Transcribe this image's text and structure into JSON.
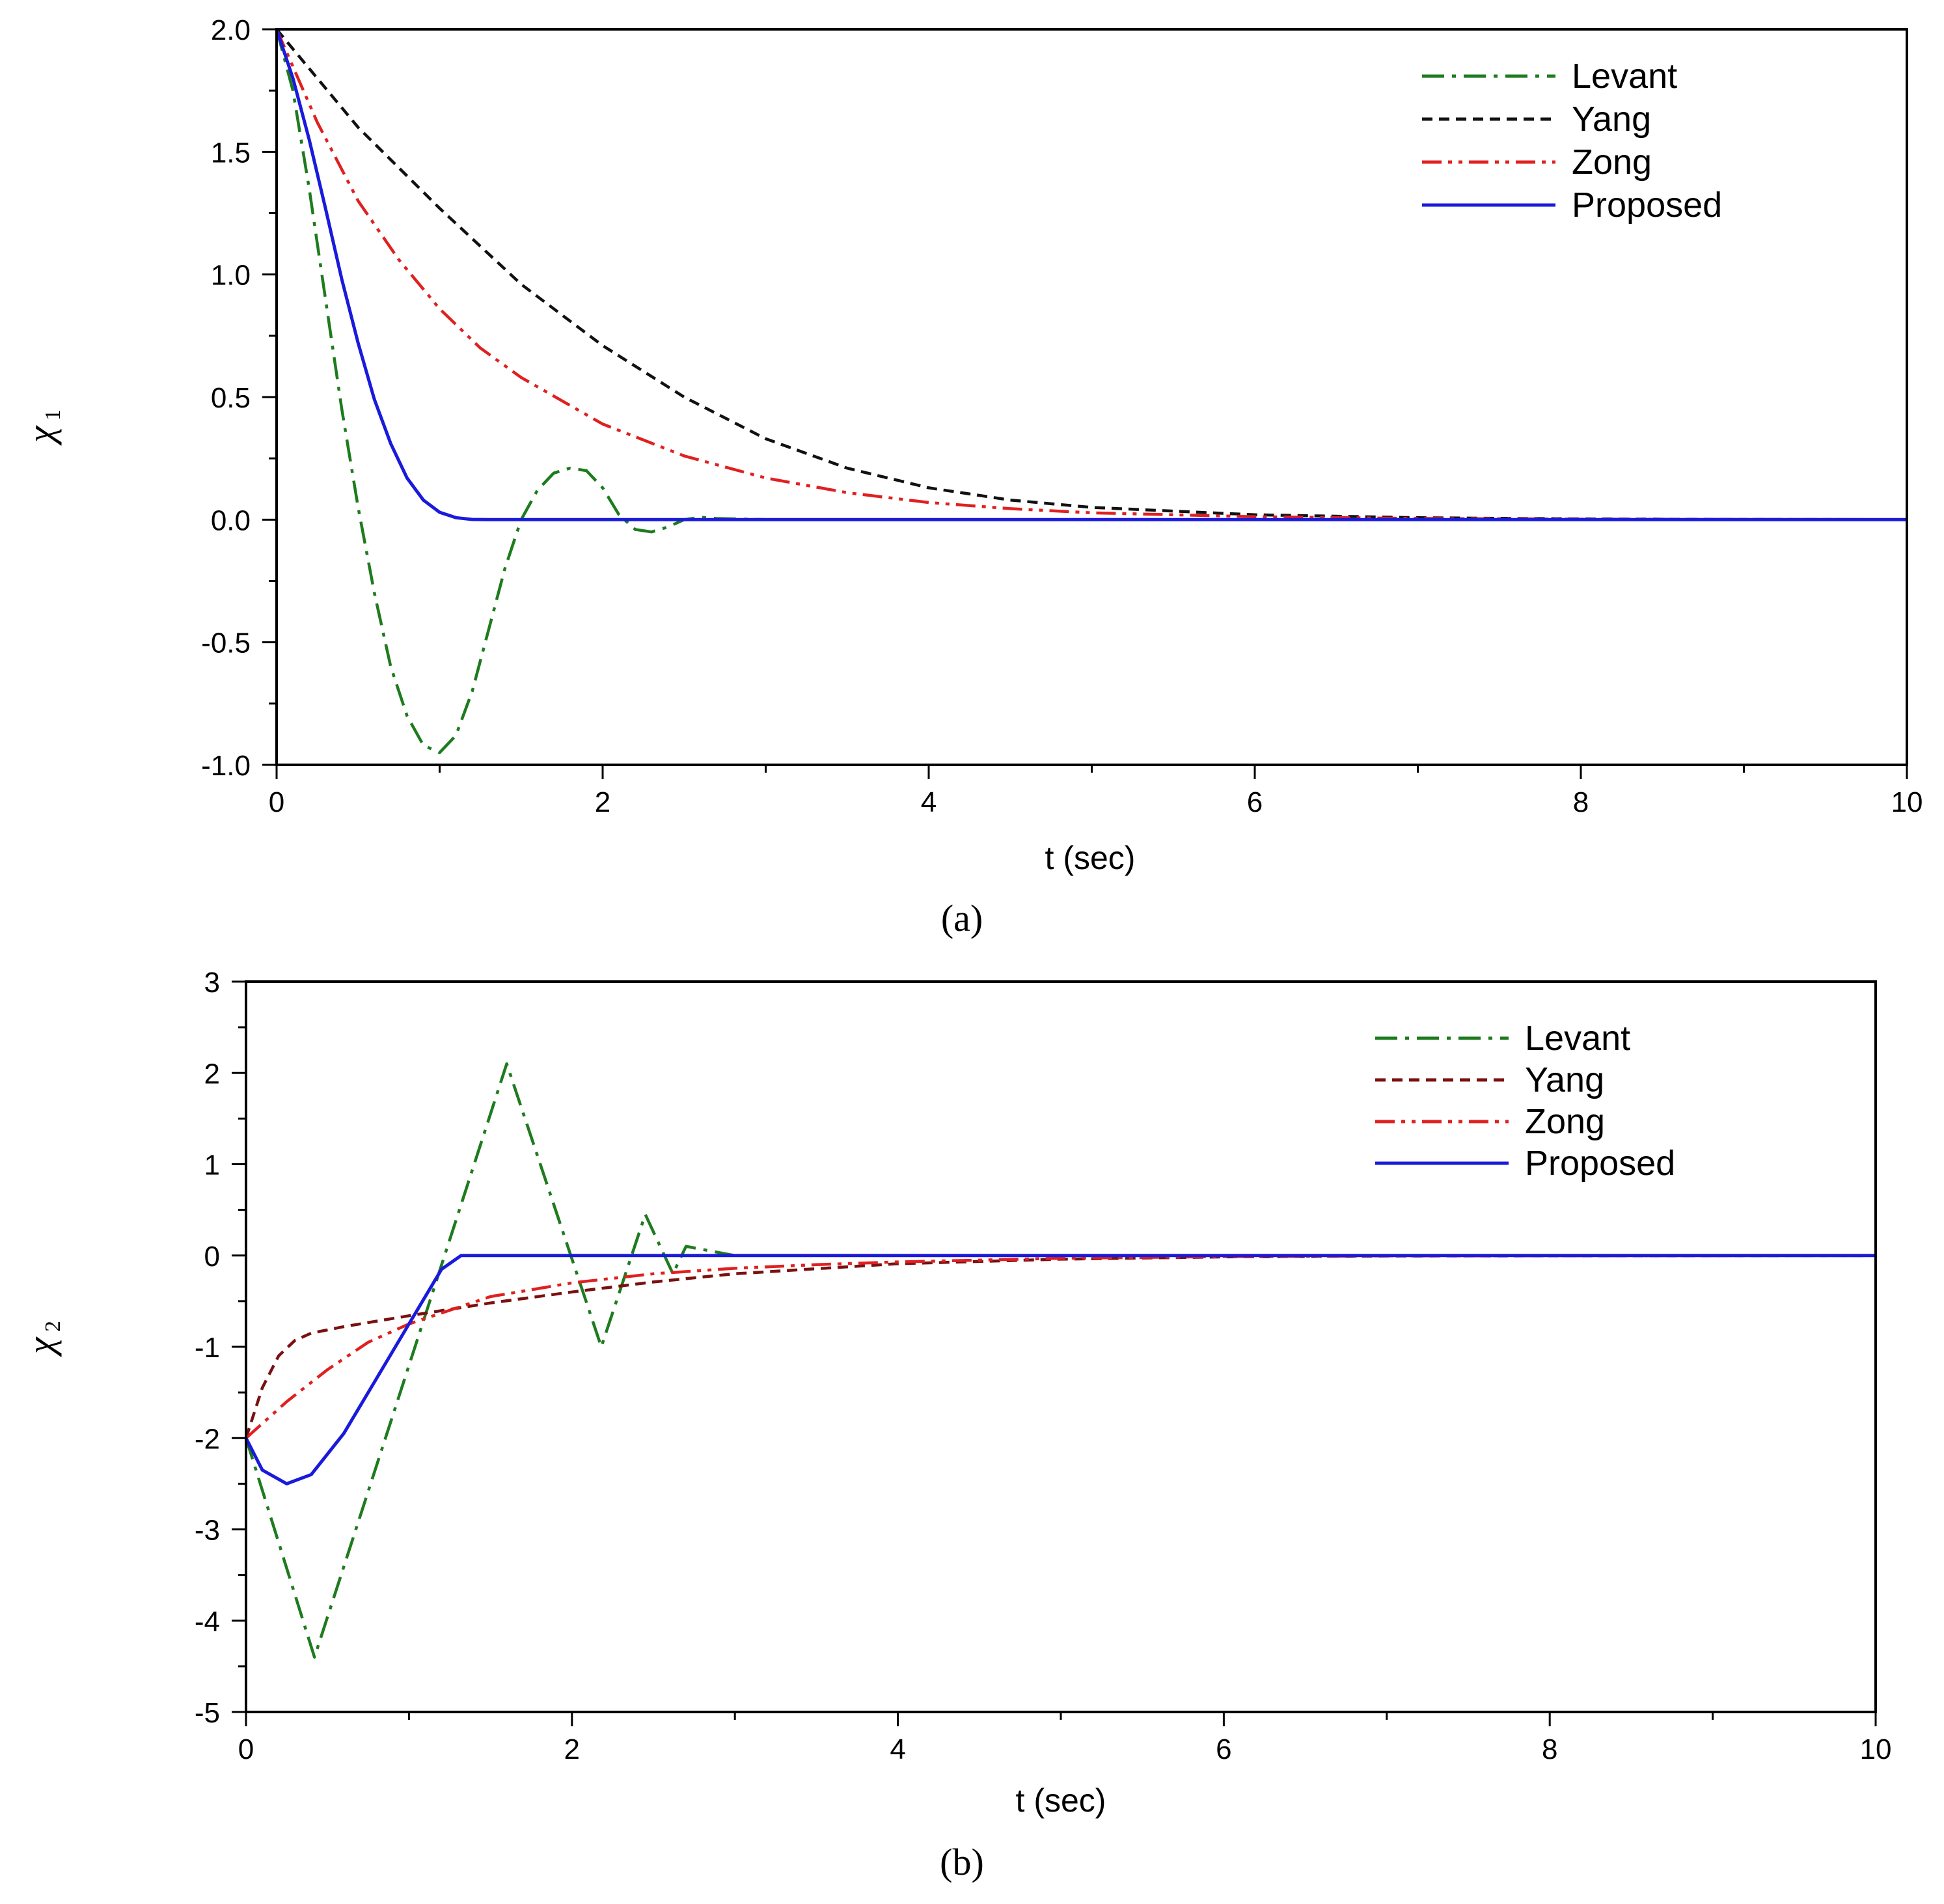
{
  "chart_data": [
    {
      "type": "line",
      "panel_label": "a",
      "caption": "(a)",
      "xlabel": "t (sec)",
      "ylabel": "χ",
      "ylabel_sub": "1",
      "xlim": [
        0,
        10
      ],
      "ylim": [
        -1.0,
        2.0
      ],
      "xticks": [
        0,
        2,
        4,
        6,
        8,
        10
      ],
      "xtick_labels": [
        "0",
        "2",
        "4",
        "6",
        "8",
        "10"
      ],
      "yticks": [
        -1.0,
        -0.5,
        0.0,
        0.5,
        1.0,
        1.5,
        2.0
      ],
      "ytick_labels": [
        "-1.0",
        "-0.5",
        "0.0",
        "0.5",
        "1.0",
        "1.5",
        "2.0"
      ],
      "legend_position": "top-right",
      "series": [
        {
          "name": "Levant",
          "color": "#1e7b1e",
          "dash": "dashdot",
          "x": [
            0,
            0.1,
            0.2,
            0.3,
            0.4,
            0.5,
            0.6,
            0.7,
            0.8,
            0.9,
            1.0,
            1.1,
            1.2,
            1.3,
            1.4,
            1.5,
            1.6,
            1.7,
            1.8,
            1.9,
            2.0,
            2.1,
            2.2,
            2.3,
            2.4,
            2.5,
            2.6,
            2.7,
            3.0,
            10
          ],
          "values": [
            2.0,
            1.75,
            1.35,
            0.9,
            0.45,
            0.05,
            -0.3,
            -0.6,
            -0.8,
            -0.92,
            -0.95,
            -0.88,
            -0.7,
            -0.45,
            -0.2,
            0.0,
            0.12,
            0.19,
            0.21,
            0.2,
            0.13,
            0.02,
            -0.04,
            -0.05,
            -0.03,
            0.0,
            0.01,
            0.005,
            0.0,
            0.0
          ]
        },
        {
          "name": "Yang",
          "color": "#111111",
          "dash": "dashed",
          "x": [
            0,
            0.5,
            1.0,
            1.5,
            2.0,
            2.5,
            3.0,
            3.5,
            4.0,
            4.5,
            5.0,
            6.0,
            7.0,
            8.0,
            9.0,
            10.0
          ],
          "values": [
            2.0,
            1.6,
            1.27,
            0.96,
            0.71,
            0.5,
            0.33,
            0.21,
            0.13,
            0.08,
            0.05,
            0.02,
            0.008,
            0.003,
            0.001,
            0.0
          ]
        },
        {
          "name": "Zong",
          "color": "#e02020",
          "dash": "dashdotdot",
          "x": [
            0,
            0.25,
            0.5,
            0.75,
            1.0,
            1.25,
            1.5,
            2.0,
            2.5,
            3.0,
            3.5,
            4.0,
            4.5,
            5.0,
            6.0,
            7.0,
            8.0,
            10.0
          ],
          "values": [
            2.0,
            1.62,
            1.3,
            1.06,
            0.86,
            0.7,
            0.58,
            0.39,
            0.26,
            0.17,
            0.11,
            0.07,
            0.045,
            0.028,
            0.012,
            0.005,
            0.002,
            0.0
          ]
        },
        {
          "name": "Proposed",
          "color": "#1a1adc",
          "dash": "solid",
          "x": [
            0,
            0.1,
            0.2,
            0.3,
            0.4,
            0.5,
            0.6,
            0.7,
            0.8,
            0.9,
            1.0,
            1.1,
            1.2,
            1.3,
            1.5,
            10
          ],
          "values": [
            2.0,
            1.8,
            1.55,
            1.27,
            0.98,
            0.72,
            0.49,
            0.31,
            0.17,
            0.08,
            0.03,
            0.008,
            0.001,
            0.0,
            0.0,
            0.0
          ]
        }
      ]
    },
    {
      "type": "line",
      "panel_label": "b",
      "caption": "(b)",
      "xlabel": "t (sec)",
      "ylabel": "χ",
      "ylabel_sub": "2",
      "xlim": [
        0,
        10
      ],
      "ylim": [
        -5,
        3
      ],
      "xticks": [
        0,
        2,
        4,
        6,
        8,
        10
      ],
      "xtick_labels": [
        "0",
        "2",
        "4",
        "6",
        "8",
        "10"
      ],
      "yticks": [
        -5,
        -4,
        -3,
        -2,
        -1,
        0,
        1,
        2,
        3
      ],
      "ytick_labels": [
        "-5",
        "-4",
        "-3",
        "-2",
        "-1",
        "0",
        "1",
        "2",
        "3"
      ],
      "legend_position": "top-right",
      "series": [
        {
          "name": "Levant",
          "color": "#1e7b1e",
          "dash": "dashdot",
          "x": [
            0,
            0.42,
            1.6,
            2.18,
            2.45,
            2.62,
            2.7,
            3.0,
            10
          ],
          "values": [
            -2.0,
            -4.4,
            2.1,
            -1.0,
            0.45,
            -0.2,
            0.1,
            0.0,
            0.0
          ]
        },
        {
          "name": "Yang",
          "color": "#7a1010",
          "dash": "dashed",
          "x": [
            0,
            0.1,
            0.2,
            0.3,
            0.4,
            0.6,
            1.0,
            1.5,
            2.0,
            2.5,
            3.0,
            4.0,
            5.0,
            6.0,
            7.0,
            10.0
          ],
          "values": [
            -2.0,
            -1.45,
            -1.1,
            -0.93,
            -0.85,
            -0.78,
            -0.66,
            -0.52,
            -0.4,
            -0.29,
            -0.2,
            -0.09,
            -0.04,
            -0.015,
            -0.005,
            0.0
          ]
        },
        {
          "name": "Zong",
          "color": "#e02020",
          "dash": "dashdotdot",
          "x": [
            0,
            0.25,
            0.5,
            0.75,
            1.0,
            1.5,
            2.0,
            2.5,
            3.0,
            3.5,
            4.0,
            5.0,
            6.0,
            7.0,
            10.0
          ],
          "values": [
            -2.0,
            -1.6,
            -1.25,
            -0.95,
            -0.75,
            -0.45,
            -0.3,
            -0.2,
            -0.14,
            -0.1,
            -0.07,
            -0.03,
            -0.012,
            -0.004,
            0.0
          ]
        },
        {
          "name": "Proposed",
          "color": "#1a1adc",
          "dash": "solid",
          "x": [
            0,
            0.1,
            0.25,
            0.4,
            0.6,
            0.8,
            1.0,
            1.2,
            1.32,
            1.5,
            10
          ],
          "values": [
            -2.0,
            -2.35,
            -2.5,
            -2.4,
            -1.95,
            -1.35,
            -0.75,
            -0.15,
            0.0,
            0.0,
            0.0
          ]
        }
      ]
    }
  ]
}
